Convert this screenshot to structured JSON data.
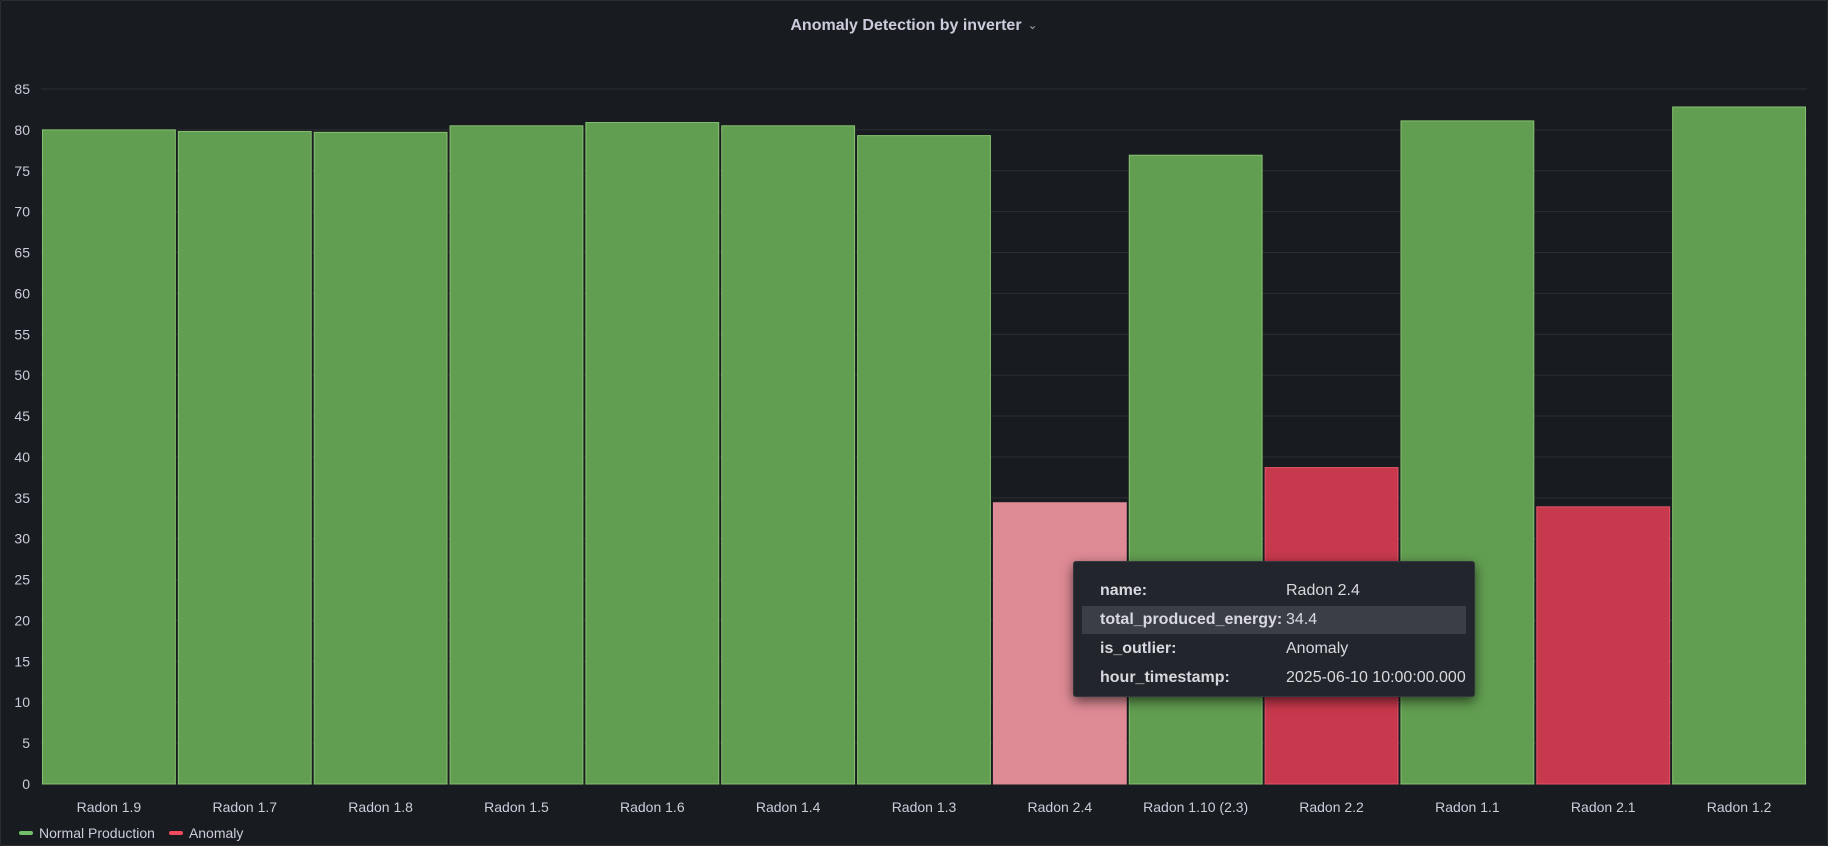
{
  "panel": {
    "title": "Anomaly Detection by inverter"
  },
  "colors": {
    "normal": "#629e51",
    "normal_edge": "#86c16f",
    "anomaly": "#c8394d",
    "anomaly_edge": "#e0556a",
    "anomaly_hover": "#df8b96",
    "grid": "#2c2f35",
    "tick_text": "#ccccdc"
  },
  "chart_data": {
    "type": "bar",
    "categories": [
      "Radon 1.9",
      "Radon 1.7",
      "Radon 1.8",
      "Radon 1.5",
      "Radon 1.6",
      "Radon 1.4",
      "Radon 1.3",
      "Radon 2.4",
      "Radon 1.10 (2.3)",
      "Radon 2.2",
      "Radon 1.1",
      "Radon 2.1",
      "Radon 1.2"
    ],
    "values": [
      80.0,
      79.8,
      79.7,
      80.5,
      80.9,
      80.5,
      79.3,
      34.4,
      76.9,
      38.7,
      81.1,
      33.9,
      82.8
    ],
    "status": [
      "Normal Production",
      "Normal Production",
      "Normal Production",
      "Normal Production",
      "Normal Production",
      "Normal Production",
      "Normal Production",
      "Anomaly",
      "Normal Production",
      "Anomaly",
      "Normal Production",
      "Anomaly",
      "Normal Production"
    ],
    "hovered_index": 7,
    "ylim": [
      0,
      85
    ],
    "yticks": [
      0,
      5,
      10,
      15,
      20,
      25,
      30,
      35,
      40,
      45,
      50,
      55,
      60,
      65,
      70,
      75,
      80,
      85
    ],
    "grid": true,
    "legend_position": "bottom-left",
    "legend": [
      {
        "label": "Normal Production",
        "color": "#73bf69"
      },
      {
        "label": "Anomaly",
        "color": "#f2495c"
      }
    ],
    "title": "Anomaly Detection by inverter",
    "xlabel": "",
    "ylabel": ""
  },
  "tooltip": {
    "rows": [
      {
        "key": "name:",
        "value": "Radon 2.4"
      },
      {
        "key": "total_produced_energy:",
        "value": "34.4"
      },
      {
        "key": "is_outlier:",
        "value": "Anomaly"
      },
      {
        "key": "hour_timestamp:",
        "value": "2025-06-10 10:00:00.000"
      }
    ]
  }
}
